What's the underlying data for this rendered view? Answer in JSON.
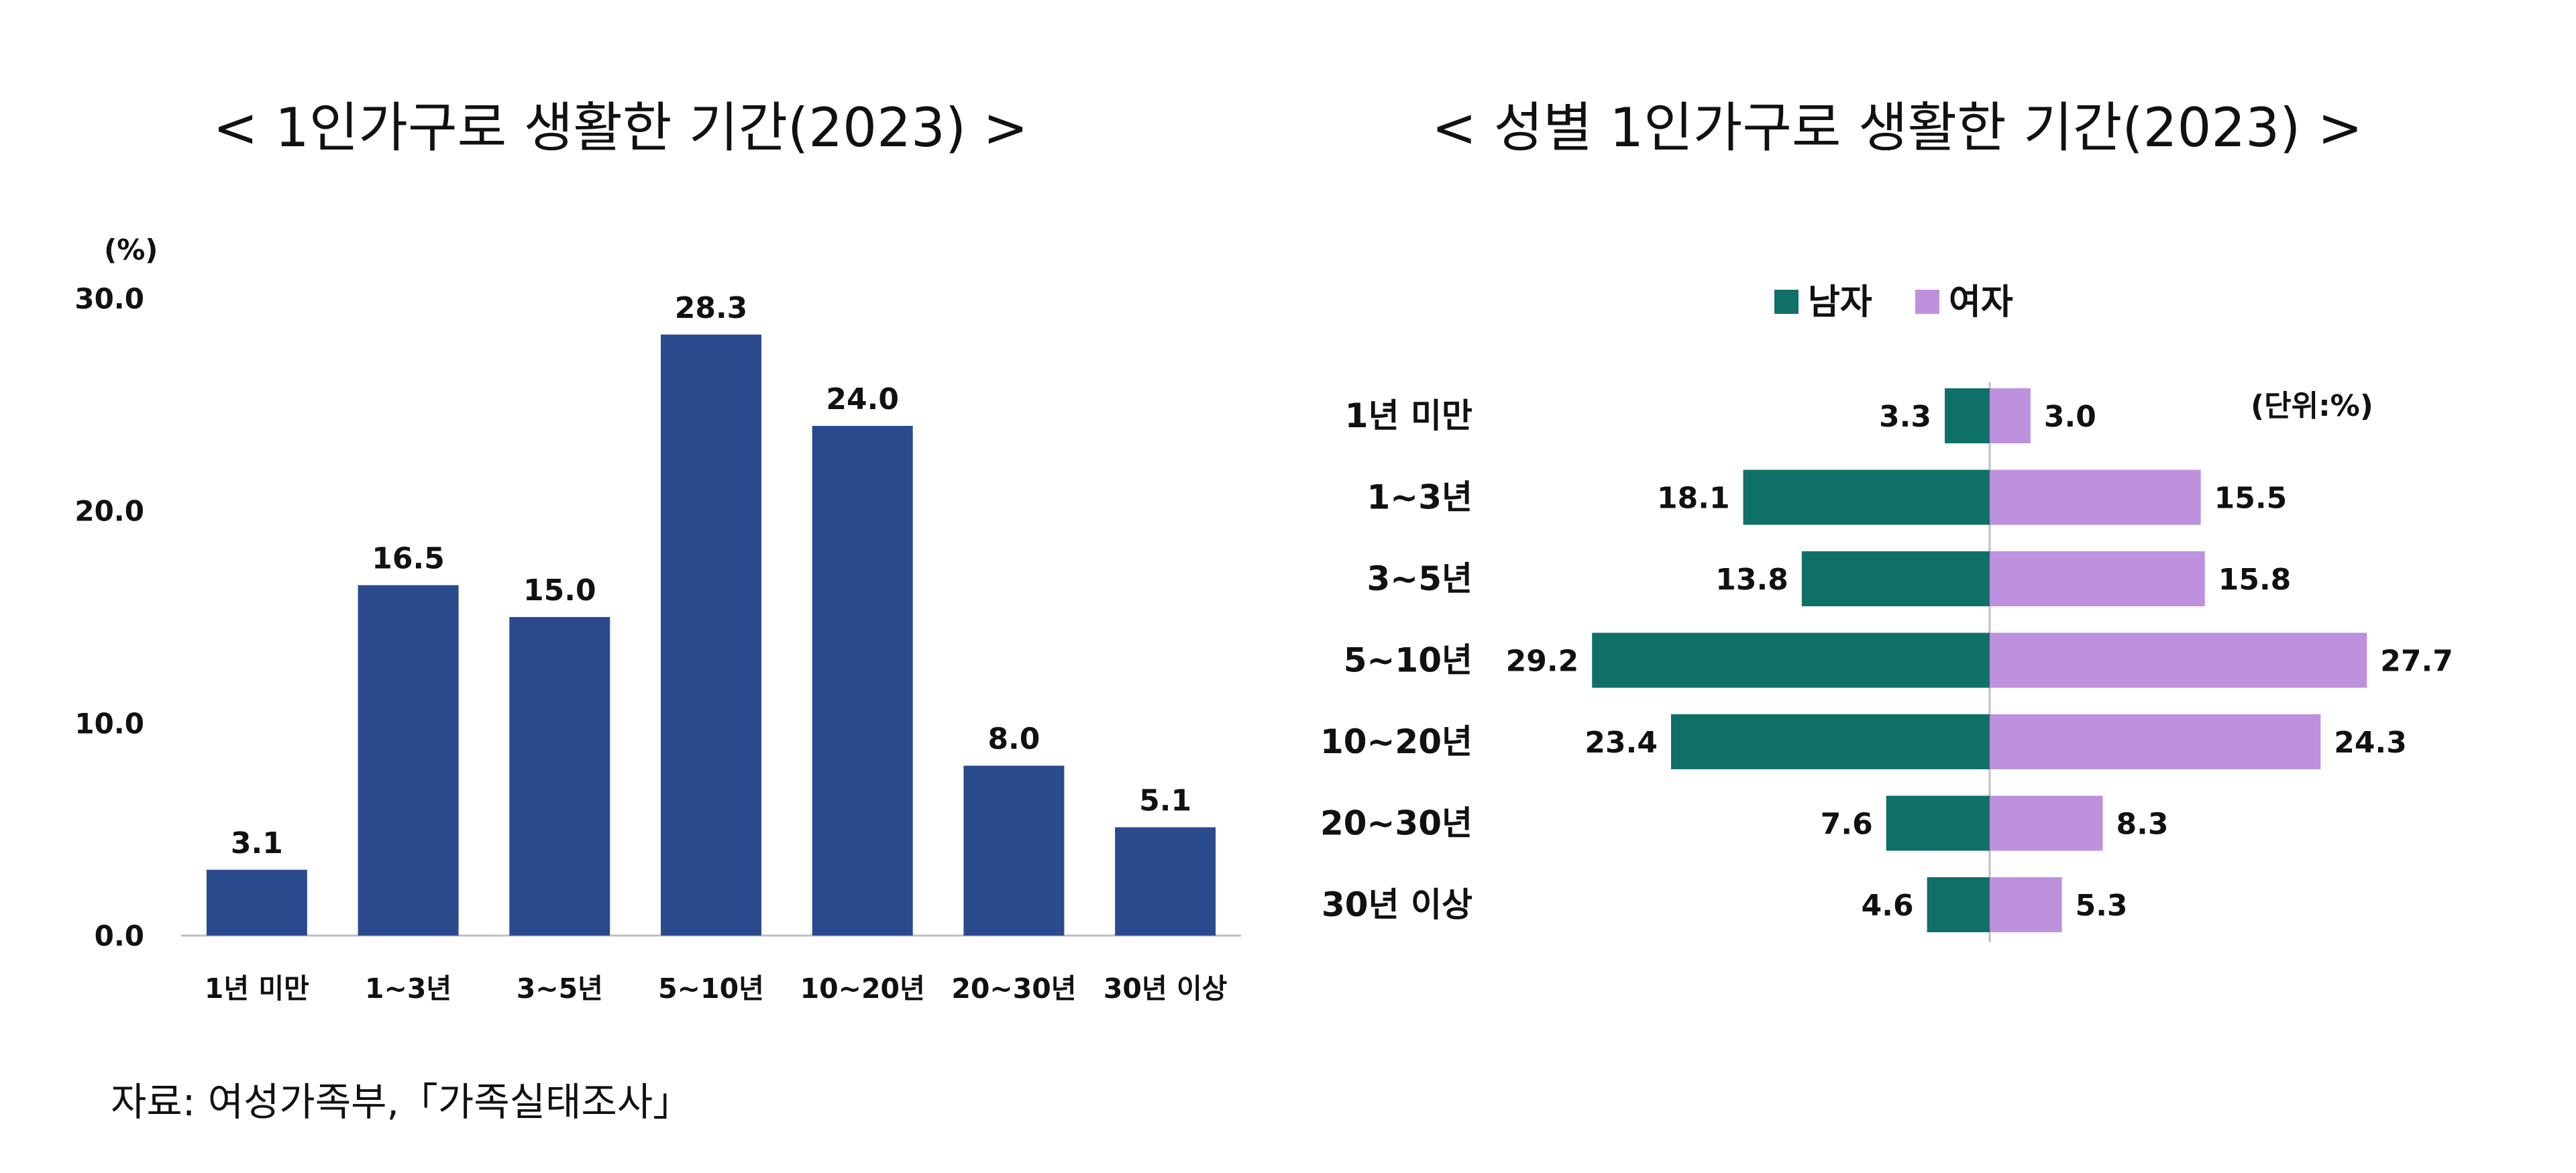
{
  "source": "자료:  여성가족부,「가족실태조사」",
  "chart_data": [
    {
      "type": "bar",
      "title": "< 1인가구로 생활한 기간(2023) >",
      "ylabel": "(%)",
      "ylim": [
        0,
        30
      ],
      "yticks": [
        "0.0",
        "10.0",
        "20.0",
        "30.0"
      ],
      "grid": false,
      "categories": [
        "1년 미만",
        "1~3년",
        "3~5년",
        "5~10년",
        "10~20년",
        "20~30년",
        "30년 이상"
      ],
      "values": [
        3.1,
        16.5,
        15.0,
        28.3,
        24.0,
        8.0,
        5.1
      ],
      "value_labels": [
        "3.1",
        "16.5",
        "15.0",
        "28.3",
        "24.0",
        "8.0",
        "5.1"
      ],
      "color": "#2b4a8e"
    },
    {
      "type": "bar",
      "orientation": "horizontal-butterfly",
      "title": "< 성별 1인가구로 생활한 기간(2023) >",
      "unit_note": "(단위:%)",
      "legend_position": "top-center",
      "categories": [
        "1년 미만",
        "1~3년",
        "3~5년",
        "5~10년",
        "10~20년",
        "20~30년",
        "30년 이상"
      ],
      "series": [
        {
          "name": "남자",
          "color": "#0f7067",
          "values": [
            3.3,
            18.1,
            13.8,
            29.2,
            23.4,
            7.6,
            4.6
          ],
          "value_labels": [
            "3.3",
            "18.1",
            "13.8",
            "29.2",
            "23.4",
            "7.6",
            "4.6"
          ]
        },
        {
          "name": "여자",
          "color": "#be91de",
          "values": [
            3.0,
            15.5,
            15.8,
            27.7,
            24.3,
            8.3,
            5.3
          ],
          "value_labels": [
            "3.0",
            "15.5",
            "15.8",
            "27.7",
            "24.3",
            "8.3",
            "5.3"
          ]
        }
      ]
    }
  ]
}
